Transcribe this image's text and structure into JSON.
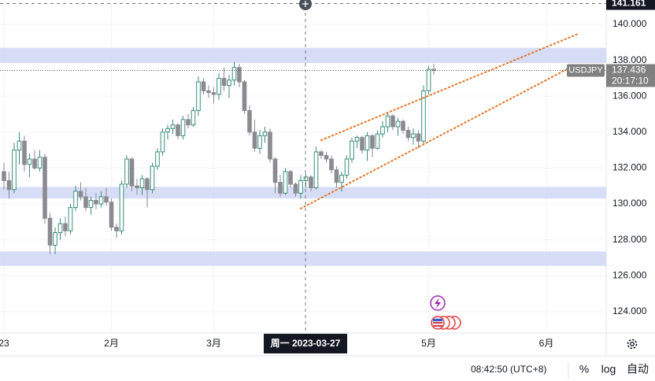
{
  "chart_data": {
    "type": "candlestick",
    "symbol": "USDJPY",
    "categories": [
      "23",
      null,
      null,
      null,
      null,
      null,
      null,
      null,
      null,
      null,
      null,
      null,
      null,
      null,
      null,
      null,
      null,
      null,
      null,
      null,
      null,
      "2月",
      null,
      null,
      null,
      null,
      null,
      null,
      null,
      null,
      null,
      null,
      null,
      null,
      null,
      null,
      null,
      null,
      null,
      null,
      null,
      "3月",
      null,
      null,
      null,
      null,
      null,
      null,
      null,
      null,
      null,
      null,
      null,
      null,
      null,
      null,
      null,
      null,
      null,
      null,
      null,
      null,
      null,
      null,
      null,
      null,
      null,
      null,
      null,
      null,
      null,
      null,
      null,
      null,
      null,
      null,
      null,
      null,
      null,
      null,
      null,
      null,
      null,
      "5月",
      null,
      null,
      null,
      null,
      null,
      null,
      null,
      null,
      null,
      null,
      null,
      null,
      null,
      null,
      null,
      null,
      null,
      null,
      null,
      null,
      null,
      null,
      "6月",
      null,
      null,
      null,
      null,
      null,
      null,
      null,
      null,
      null,
      null,
      null
    ],
    "open": [
      131.8,
      131.3,
      130.8,
      133.0,
      133.5,
      132.2,
      132.5,
      132.0,
      132.6,
      129.2,
      127.7,
      128.4,
      128.9,
      128.5,
      129.8,
      130.7,
      130.4,
      129.8,
      130.2,
      130.0,
      130.4,
      130.1,
      128.7,
      128.5,
      131.1,
      132.5,
      131.0,
      130.9,
      131.4,
      130.8,
      132.1,
      132.9,
      134.0,
      134.2,
      134.4,
      133.8,
      134.7,
      134.4,
      135.2,
      136.8,
      136.3,
      136.2,
      136.1,
      137.0,
      136.6,
      136.9,
      137.6,
      136.8,
      135.2,
      134.0,
      133.1,
      133.8,
      134.0,
      132.5,
      131.2,
      130.6,
      131.8,
      131.1,
      130.6,
      131.3,
      131.5,
      130.9,
      132.9,
      132.7,
      132.5,
      131.9,
      131.2,
      131.6,
      132.5,
      133.5,
      133.7,
      133.0,
      133.8,
      133.1,
      133.9,
      134.3,
      134.9,
      134.3,
      134.6,
      134.1,
      133.7,
      133.9,
      133.5,
      136.3,
      137.5,
      null,
      null,
      null,
      null,
      null,
      null,
      null,
      null,
      null,
      null,
      null,
      null,
      null,
      null,
      null,
      null,
      null,
      null,
      null,
      null,
      null,
      null,
      null,
      null,
      null,
      null,
      null,
      null,
      null,
      null,
      null,
      null,
      null
    ],
    "high": [
      132.3,
      131.8,
      133.4,
      134.0,
      133.8,
      132.8,
      133.0,
      133.0,
      132.8,
      129.5,
      128.7,
      129.2,
      129.3,
      130.0,
      131.0,
      131.2,
      130.9,
      130.4,
      130.6,
      130.7,
      130.9,
      130.3,
      128.9,
      131.3,
      132.7,
      132.6,
      131.4,
      131.6,
      131.5,
      132.3,
      133.1,
      134.2,
      134.4,
      134.7,
      134.5,
      134.9,
      135.0,
      135.4,
      137.1,
      137.0,
      136.6,
      136.5,
      137.3,
      137.6,
      137.2,
      137.9,
      137.8,
      136.9,
      135.5,
      134.7,
      134.1,
      134.3,
      134.2,
      132.6,
      131.6,
      132.0,
      131.9,
      131.2,
      131.6,
      131.7,
      131.6,
      133.2,
      133.0,
      132.9,
      132.7,
      132.1,
      131.8,
      132.7,
      133.7,
      133.8,
      133.8,
      134.0,
      133.9,
      134.1,
      134.6,
      135.1,
      135.0,
      134.8,
      134.7,
      134.3,
      134.2,
      134.1,
      136.6,
      137.7,
      137.8,
      null,
      null,
      null,
      null,
      null,
      null,
      null,
      null,
      null,
      null,
      null,
      null,
      null,
      null,
      null,
      null,
      null,
      null,
      null,
      null,
      null,
      null,
      null,
      null,
      null,
      null,
      null,
      null,
      null,
      null,
      null,
      null,
      null
    ],
    "low": [
      130.8,
      130.3,
      130.6,
      132.2,
      131.8,
      131.5,
      131.9,
      131.8,
      128.9,
      127.2,
      127.2,
      128.0,
      128.2,
      128.3,
      129.6,
      130.2,
      129.6,
      129.4,
      129.7,
      129.8,
      129.9,
      128.5,
      128.1,
      128.3,
      130.9,
      130.7,
      130.5,
      130.5,
      129.8,
      130.6,
      131.9,
      132.7,
      133.6,
      133.9,
      133.6,
      133.6,
      134.2,
      134.3,
      134.9,
      136.1,
      135.9,
      135.6,
      135.8,
      136.3,
      135.9,
      136.6,
      136.5,
      135.0,
      133.8,
      132.9,
      132.8,
      133.4,
      132.3,
      130.6,
      130.4,
      130.5,
      130.9,
      130.4,
      130.3,
      130.9,
      130.7,
      130.8,
      132.5,
      132.3,
      131.7,
      130.9,
      130.7,
      131.4,
      132.3,
      133.1,
      132.8,
      132.4,
      132.6,
      133.0,
      133.7,
      134.0,
      134.1,
      133.8,
      133.9,
      133.5,
      133.3,
      133.1,
      133.3,
      136.1,
      137.2,
      null,
      null,
      null,
      null,
      null,
      null,
      null,
      null,
      null,
      null,
      null,
      null,
      null,
      null,
      null,
      null,
      null,
      null,
      null,
      null,
      null,
      null,
      null,
      null,
      null,
      null,
      null,
      null,
      null,
      null,
      null,
      null,
      null
    ],
    "close": [
      131.3,
      130.8,
      133.0,
      133.5,
      132.2,
      132.5,
      132.0,
      132.6,
      129.2,
      127.7,
      128.4,
      128.9,
      128.5,
      129.8,
      130.7,
      130.4,
      129.8,
      130.2,
      130.0,
      130.4,
      130.1,
      128.7,
      128.5,
      131.1,
      132.5,
      131.0,
      130.9,
      131.4,
      130.8,
      132.1,
      132.9,
      134.0,
      134.2,
      134.4,
      133.8,
      134.7,
      134.4,
      135.2,
      136.8,
      136.3,
      136.2,
      136.1,
      137.0,
      136.6,
      136.9,
      137.6,
      136.8,
      135.2,
      134.0,
      133.1,
      133.8,
      134.0,
      132.5,
      131.2,
      130.6,
      131.8,
      131.1,
      130.6,
      131.3,
      131.5,
      130.9,
      132.9,
      132.7,
      132.5,
      131.9,
      131.2,
      131.6,
      132.5,
      133.5,
      133.7,
      133.0,
      133.8,
      133.1,
      133.9,
      134.3,
      134.9,
      134.3,
      134.6,
      134.1,
      133.7,
      133.9,
      133.5,
      136.3,
      137.5,
      137.436,
      null,
      null,
      null,
      null,
      null,
      null,
      null,
      null,
      null,
      null,
      null,
      null,
      null,
      null,
      null,
      null,
      null,
      null,
      null,
      null,
      null,
      null,
      null,
      null,
      null,
      null,
      null,
      null,
      null,
      null,
      null,
      null,
      null
    ],
    "up_color": "#3b8c7b",
    "down_color": "#8a8a90",
    "ylim": [
      122.81,
      141.36
    ],
    "yticks": [
      {
        "value": 124,
        "label": "124.000"
      },
      {
        "value": 126,
        "label": "126.000"
      },
      {
        "value": 128,
        "label": "128.000"
      },
      {
        "value": 130,
        "label": "130.000"
      },
      {
        "value": 132,
        "label": "132.000"
      },
      {
        "value": 134,
        "label": "134.000"
      },
      {
        "value": 136,
        "label": "136.000"
      },
      {
        "value": 138,
        "label": "138.000"
      },
      {
        "value": 140,
        "label": "140.000"
      }
    ],
    "grid": true,
    "zones": [
      {
        "low": 137.85,
        "high": 138.7
      },
      {
        "low": 130.3,
        "high": 130.95
      },
      {
        "low": 126.55,
        "high": 127.35
      }
    ],
    "zone_color": "#d3d9f5",
    "trendlines": [
      {
        "x": [
          62,
          112
        ],
        "y": [
          133.55,
          139.45
        ]
      },
      {
        "x": [
          58,
          110
        ],
        "y": [
          129.74,
          137.5
        ]
      }
    ],
    "trendline_color": "#e0782c",
    "last_price": {
      "value": 137.436,
      "label": "137.436"
    },
    "countdown": "20:17:10",
    "crosshair_price": {
      "value": 141.161,
      "label": "141.161"
    },
    "crosshair_date": "周一 2023-03-27",
    "status_time": "08:42:50 (UTC+8)",
    "buttons": [
      "%",
      "log",
      "自动"
    ]
  }
}
